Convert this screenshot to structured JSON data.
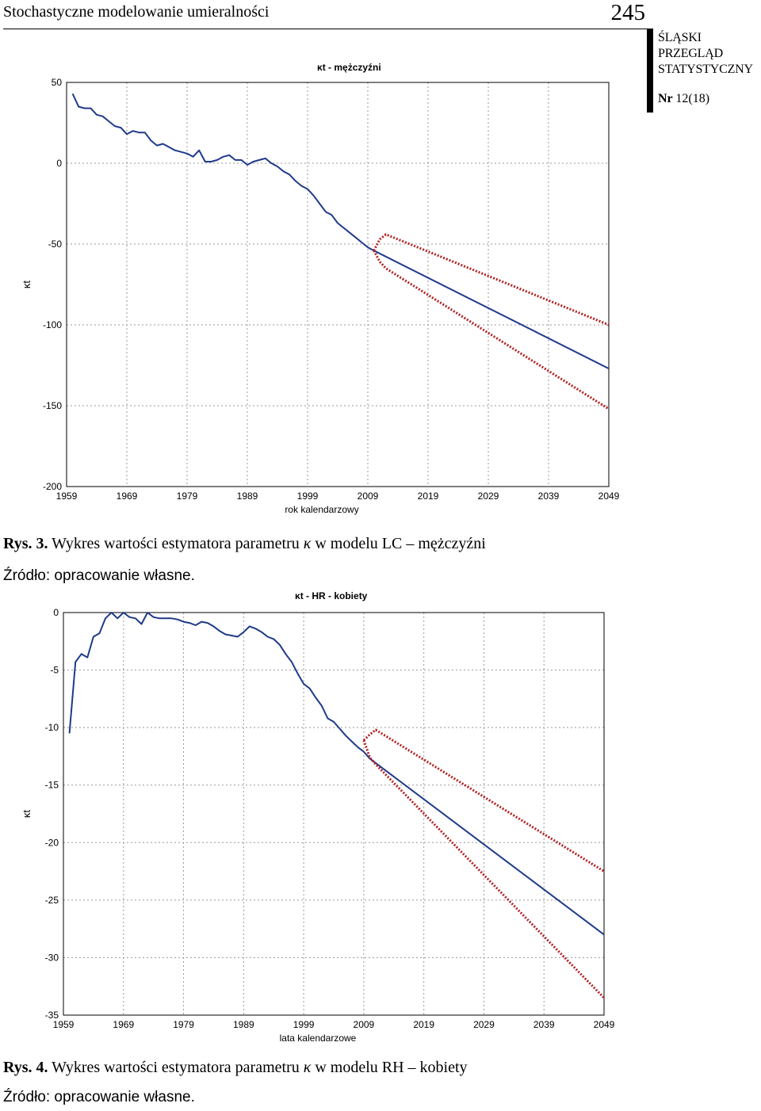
{
  "header": {
    "running_title": "Stochastyczne modelowanie umieralności",
    "page_number": "245",
    "journal": [
      "ŚLĄSKI",
      "PRZEGLĄD",
      "STATYSTYCZNY"
    ],
    "issue_label": "Nr",
    "issue_value": "12(18)"
  },
  "figures": [
    {
      "label": "Rys. 3.",
      "caption_pre": "Wykres wartości estymatora parametru ",
      "caption_symbol": "κ",
      "caption_post": " w modelu LC – mężczyźni",
      "source": "Źródło: opracowanie własne."
    },
    {
      "label": "Rys. 4.",
      "caption_pre": "Wykres wartości estymatora parametru ",
      "caption_symbol": "κ",
      "caption_post": " w modelu RH – kobiety",
      "source": "Źródło: opracowanie własne."
    }
  ],
  "chart_data": [
    {
      "type": "line",
      "title": "κt -  mężczyźni",
      "xlabel": "rok kalendarzowy",
      "ylabel": "κt",
      "xlim": [
        1959,
        2049
      ],
      "ylim": [
        -200,
        50
      ],
      "x_ticks": [
        1959,
        1969,
        1979,
        1989,
        1999,
        2009,
        2019,
        2029,
        2039,
        2049
      ],
      "y_ticks": [
        50,
        0,
        -50,
        -100,
        -150,
        -200
      ],
      "grid": true,
      "colors": {
        "estimate": "#1f3a8a",
        "interval": "#b22222"
      },
      "series": [
        {
          "role": "estimate",
          "style": "solid",
          "x": [
            1960,
            1961,
            1962,
            1963,
            1964,
            1965,
            1966,
            1967,
            1968,
            1969,
            1970,
            1971,
            1972,
            1973,
            1974,
            1975,
            1976,
            1977,
            1978,
            1979,
            1980,
            1981,
            1982,
            1983,
            1984,
            1985,
            1986,
            1987,
            1988,
            1989,
            1990,
            1991,
            1992,
            1993,
            1994,
            1995,
            1996,
            1997,
            1998,
            1999,
            2000,
            2001,
            2002,
            2003,
            2004,
            2005,
            2006,
            2007,
            2008,
            2009,
            2010,
            2049
          ],
          "y": [
            43,
            35,
            34,
            34,
            30,
            29,
            26,
            23,
            22,
            18,
            20,
            19,
            19,
            14,
            11,
            12,
            10,
            8,
            7,
            6,
            4,
            8,
            1,
            1,
            2,
            4,
            5,
            2,
            2,
            -1,
            1,
            2,
            3,
            0,
            -2,
            -5,
            -7,
            -11,
            -14,
            -16,
            -20,
            -25,
            -30,
            -32,
            -37,
            -40,
            -43,
            -46,
            -49,
            -52,
            -54,
            -127
          ]
        },
        {
          "role": "upper-bound",
          "style": "dotted",
          "x": [
            2010,
            2011,
            2012,
            2049
          ],
          "y": [
            -54,
            -47,
            -44,
            -100
          ]
        },
        {
          "role": "lower-bound",
          "style": "dotted",
          "x": [
            2010,
            2011,
            2012,
            2049
          ],
          "y": [
            -54,
            -61,
            -65,
            -152
          ]
        }
      ]
    },
    {
      "type": "line",
      "title": "κt - HR -  kobiety",
      "xlabel": "lata kalendarzowe",
      "ylabel": "κt",
      "xlim": [
        1959,
        2049
      ],
      "ylim": [
        -35,
        0
      ],
      "x_ticks": [
        1959,
        1969,
        1979,
        1989,
        1999,
        2009,
        2019,
        2029,
        2039,
        2049
      ],
      "y_ticks": [
        0,
        -5,
        -10,
        -15,
        -20,
        -25,
        -30,
        -35
      ],
      "grid": true,
      "colors": {
        "estimate": "#1f3a8a",
        "interval": "#b22222"
      },
      "series": [
        {
          "role": "estimate",
          "style": "solid",
          "x": [
            1960,
            1961,
            1962,
            1963,
            1964,
            1965,
            1966,
            1967,
            1968,
            1969,
            1970,
            1971,
            1972,
            1973,
            1974,
            1975,
            1976,
            1977,
            1978,
            1979,
            1980,
            1981,
            1982,
            1983,
            1984,
            1985,
            1986,
            1987,
            1988,
            1989,
            1990,
            1991,
            1992,
            1993,
            1994,
            1995,
            1996,
            1997,
            1998,
            1999,
            2000,
            2001,
            2002,
            2003,
            2004,
            2005,
            2006,
            2007,
            2008,
            2009,
            2010,
            2049
          ],
          "y": [
            -10.5,
            -4.3,
            -3.6,
            -3.9,
            -2.1,
            -1.8,
            -0.5,
            0,
            -0.5,
            0,
            -0.4,
            -0.5,
            -1,
            0,
            -0.4,
            -0.5,
            -0.5,
            -0.5,
            -0.6,
            -0.8,
            -0.9,
            -1.1,
            -0.8,
            -0.9,
            -1.2,
            -1.6,
            -1.9,
            -2,
            -2.1,
            -1.7,
            -1.2,
            -1.4,
            -1.7,
            -2.1,
            -2.3,
            -2.8,
            -3.6,
            -4.3,
            -5.3,
            -6.2,
            -6.6,
            -7.4,
            -8.1,
            -9.2,
            -9.5,
            -10.1,
            -10.7,
            -11.2,
            -11.7,
            -12.1,
            -12.7,
            -28
          ]
        },
        {
          "role": "upper-bound",
          "style": "dotted",
          "x": [
            2009,
            2010,
            2011,
            2049
          ],
          "y": [
            -11.1,
            -10.6,
            -10.2,
            -22.5
          ]
        },
        {
          "role": "lower-bound",
          "style": "dotted",
          "x": [
            2009,
            2010,
            2011,
            2049
          ],
          "y": [
            -11.1,
            -12.6,
            -13.2,
            -33.5
          ]
        }
      ]
    }
  ]
}
